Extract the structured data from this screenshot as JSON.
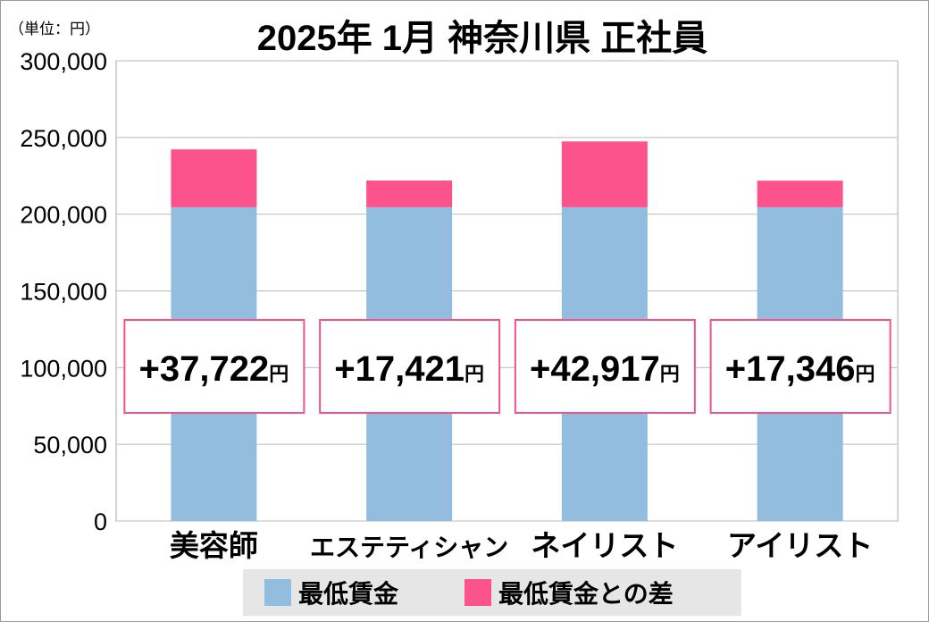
{
  "chart_data": {
    "type": "bar",
    "stacked": true,
    "title": "2025年 1月  神奈川県  正社員",
    "unit_label": "（単位：円）",
    "categories": [
      "美容師",
      "エステティシャン",
      "ネイリスト",
      "アイリスト"
    ],
    "series": [
      {
        "name": "最低賃金",
        "color": "#92bddf",
        "values": [
          204512,
          204512,
          204512,
          204512
        ]
      },
      {
        "name": "最低賃金との差",
        "color": "#fd538c",
        "values": [
          37722,
          17421,
          42917,
          17346
        ]
      }
    ],
    "data_labels": [
      "+37,722",
      "+17,421",
      "+42,917",
      "+17,346"
    ],
    "data_label_unit": "円",
    "ylim": [
      0,
      300000
    ],
    "yticks": [
      "0",
      "50,000",
      "100,000",
      "150,000",
      "200,000",
      "250,000",
      "300,000"
    ],
    "grid": true,
    "legend_position": "bottom"
  }
}
